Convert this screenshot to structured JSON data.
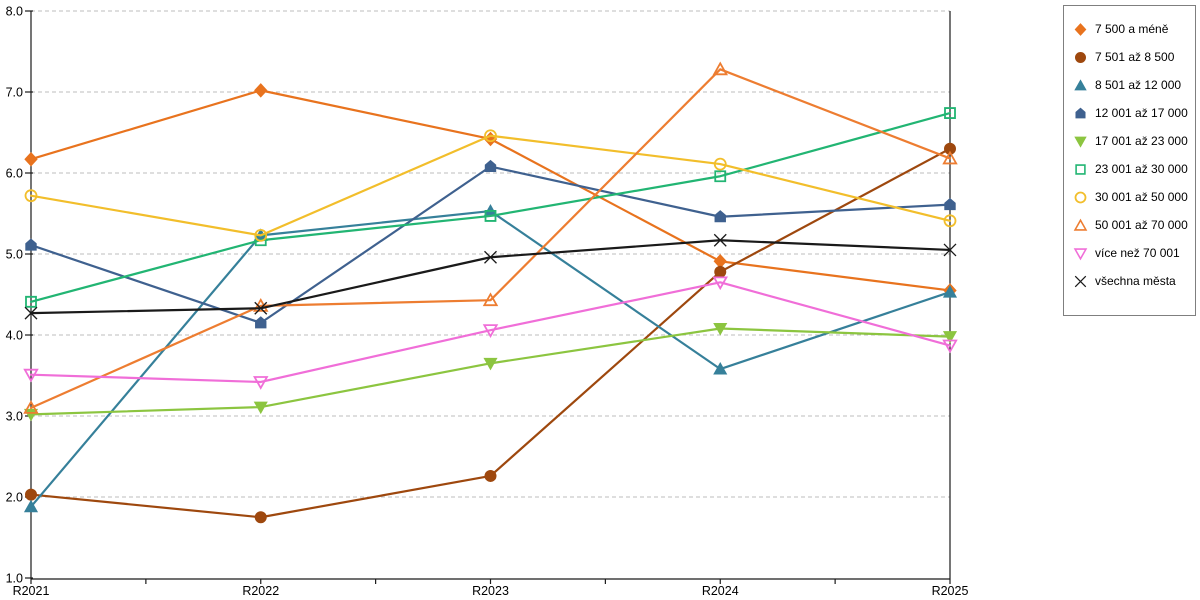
{
  "chart_data": {
    "type": "line",
    "title": "",
    "xlabel": "",
    "ylabel": "",
    "x_categories": [
      "R2021",
      "R2022",
      "R2023",
      "R2024",
      "R2025"
    ],
    "ylim": [
      1.0,
      8.0
    ],
    "y_tick_labels": [
      "1.0",
      "2.0",
      "3.0",
      "4.0",
      "5.0",
      "6.0",
      "7.0",
      "8.0"
    ],
    "grid": "horizontal-dashed",
    "legend_position": "right-outside",
    "series": [
      {
        "name": "7 500 a méně",
        "color": "#E8731E",
        "marker": "diamond",
        "marker_style": "filled",
        "values": [
          6.17,
          7.02,
          6.42,
          4.91,
          4.55
        ]
      },
      {
        "name": "7 501 až 8 500",
        "color": "#9E480E",
        "marker": "circle",
        "marker_style": "filled",
        "values": [
          2.03,
          1.75,
          2.26,
          4.78,
          6.3
        ]
      },
      {
        "name": "8 501 až 12 000",
        "color": "#36809A",
        "marker": "triangle-up",
        "marker_style": "filled",
        "values": [
          1.88,
          5.23,
          5.53,
          3.58,
          4.53
        ]
      },
      {
        "name": "12 001 až 17 000",
        "color": "#3F618F",
        "marker": "pentagon",
        "marker_style": "filled",
        "values": [
          5.11,
          4.15,
          6.08,
          5.46,
          5.61
        ]
      },
      {
        "name": "17 001 až 23 000",
        "color": "#8CC540",
        "marker": "triangle-down",
        "marker_style": "filled",
        "values": [
          3.02,
          3.11,
          3.65,
          4.08,
          3.98
        ]
      },
      {
        "name": "23 001 až 30 000",
        "color": "#22B573",
        "marker": "square",
        "marker_style": "open",
        "values": [
          4.41,
          5.17,
          5.47,
          5.96,
          6.74
        ]
      },
      {
        "name": "30 001 až 50 000",
        "color": "#F2BE2B",
        "marker": "circle",
        "marker_style": "open",
        "values": [
          5.72,
          5.23,
          6.46,
          6.11,
          5.41
        ]
      },
      {
        "name": "50 001 až 70 000",
        "color": "#ED7D31",
        "marker": "triangle-up",
        "marker_style": "open",
        "values": [
          3.1,
          4.36,
          4.43,
          7.28,
          6.18
        ]
      },
      {
        "name": "více než 70 001",
        "color": "#F06ED8",
        "marker": "triangle-down",
        "marker_style": "open",
        "values": [
          3.51,
          3.42,
          4.06,
          4.65,
          3.87
        ]
      },
      {
        "name": "všechna města",
        "color": "#1A1A1A",
        "marker": "x",
        "marker_style": "open",
        "values": [
          4.27,
          4.33,
          4.96,
          5.17,
          5.05
        ]
      }
    ]
  }
}
